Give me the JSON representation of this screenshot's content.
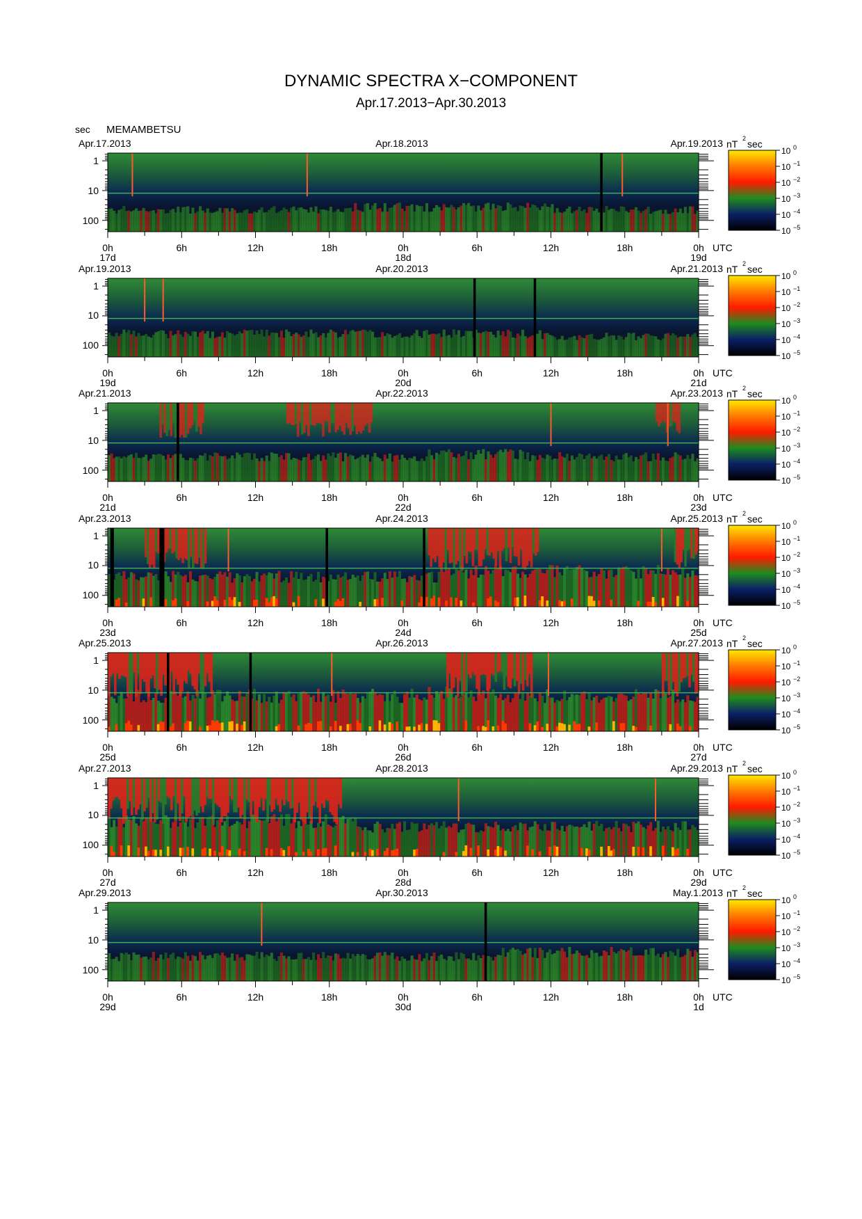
{
  "title": "DYNAMIC SPECTRA X−COMPONENT",
  "subtitle": "Apr.17.2013−Apr.30.2013",
  "unit_label": "sec",
  "station": "MEMAMBETSU",
  "time_zone": "UTC",
  "colorbar": {
    "unit": "nT",
    "unit_exp": "2",
    "unit_suffix": "sec",
    "base": "10",
    "exponents": [
      "0",
      "−1",
      "−2",
      "−3",
      "−4",
      "−5"
    ],
    "colors": [
      "#ffe800",
      "#ff7a00",
      "#ff1a00",
      "#1f8c1f",
      "#0b1f66",
      "#000000"
    ]
  },
  "chart_data": {
    "type": "heatmap",
    "description_axis": "period",
    "y_ticks": [
      "1",
      "10",
      "100"
    ],
    "x_ticks": [
      "0h",
      "6h",
      "12h",
      "18h",
      "0h",
      "6h",
      "12h",
      "18h",
      "0h"
    ],
    "log_scale_y": true,
    "panels": [
      {
        "date_left": "Apr.17.2013",
        "date_mid": "Apr.18.2013",
        "date_right": "Apr.19.2013",
        "days": [
          "17d",
          "18d",
          "19d"
        ],
        "gaps": [
          [
            40.0,
            40.2
          ]
        ],
        "spikes": [
          2.0,
          16.2,
          41.8
        ],
        "storm_segments": [],
        "activity": [
          [
            0,
            48,
            0.25
          ],
          [
            20,
            36,
            0.35
          ]
        ],
        "low_noise": 0.3
      },
      {
        "date_left": "Apr.19.2013",
        "date_mid": "Apr.20.2013",
        "date_right": "Apr.21.2013",
        "days": [
          "19d",
          "20d",
          "21d"
        ],
        "gaps": [
          [
            29.7,
            29.9
          ],
          [
            34.6,
            34.8
          ]
        ],
        "spikes": [
          3.0,
          4.5
        ],
        "storm_segments": [],
        "activity": [
          [
            0,
            35,
            0.3
          ],
          [
            35,
            48,
            0.2
          ]
        ],
        "low_noise": 0.3
      },
      {
        "date_left": "Apr.21.2013",
        "date_mid": "Apr.22.2013",
        "date_right": "Apr.23.2013",
        "days": [
          "21d",
          "22d",
          "23d"
        ],
        "gaps": [
          [
            5.6,
            5.8
          ]
        ],
        "spikes": [
          36.0,
          45.5
        ],
        "storm_segments": [
          [
            4.2,
            7.8,
            0.6
          ],
          [
            14.5,
            21.5,
            0.55
          ],
          [
            44.5,
            46.5,
            0.5
          ]
        ],
        "activity": [
          [
            0,
            48,
            0.35
          ],
          [
            26,
            34,
            0.45
          ]
        ],
        "low_noise": 0.3
      },
      {
        "date_left": "Apr.23.2013",
        "date_mid": "Apr.24.2013",
        "date_right": "Apr.25.2013",
        "days": [
          "23d",
          "24d",
          "25d"
        ],
        "gaps": [
          [
            0.2,
            0.5
          ],
          [
            4.2,
            4.6
          ],
          [
            17.7,
            17.9
          ],
          [
            25.6,
            25.8
          ]
        ],
        "spikes": [
          9.8,
          45.0
        ],
        "storm_segments": [
          [
            3.0,
            8.0,
            0.75
          ],
          [
            26.0,
            35.0,
            0.8
          ],
          [
            46.0,
            48.0,
            0.85
          ]
        ],
        "activity": [
          [
            0,
            48,
            0.55
          ],
          [
            27,
            48,
            0.75
          ]
        ],
        "low_noise": 0.55
      },
      {
        "date_left": "Apr.25.2013",
        "date_mid": "Apr.26.2013",
        "date_right": "Apr.27.2013",
        "days": [
          "25d",
          "26d",
          "27d"
        ],
        "gaps": [
          [
            4.8,
            5.0
          ],
          [
            11.5,
            11.7
          ]
        ],
        "spikes": [
          18.2,
          35.8
        ],
        "storm_segments": [
          [
            0.0,
            8.5,
            0.9
          ],
          [
            27.5,
            34.5,
            0.9
          ],
          [
            45.0,
            48.0,
            0.9
          ]
        ],
        "activity": [
          [
            0,
            48,
            0.75
          ],
          [
            24,
            32,
            0.85
          ]
        ],
        "low_noise": 0.6
      },
      {
        "date_left": "Apr.27.2013",
        "date_mid": "Apr.28.2013",
        "date_right": "Apr.29.2013",
        "days": [
          "27d",
          "28d",
          "29d"
        ],
        "gaps": [],
        "spikes": [
          28.5,
          44.5
        ],
        "storm_segments": [
          [
            0.0,
            19.0,
            0.95
          ]
        ],
        "activity": [
          [
            0,
            20,
            0.75
          ],
          [
            20,
            48,
            0.55
          ]
        ],
        "low_noise": 0.55
      },
      {
        "date_left": "Apr.29.2013",
        "date_mid": "Apr.30.2013",
        "date_right": "May.1.2013",
        "days": [
          "29d",
          "30d",
          "1d"
        ],
        "gaps": [
          [
            30.6,
            30.8
          ]
        ],
        "spikes": [
          12.5
        ],
        "storm_segments": [],
        "activity": [
          [
            0,
            48,
            0.35
          ],
          [
            32,
            48,
            0.5
          ]
        ],
        "low_noise": 0.3
      }
    ]
  }
}
